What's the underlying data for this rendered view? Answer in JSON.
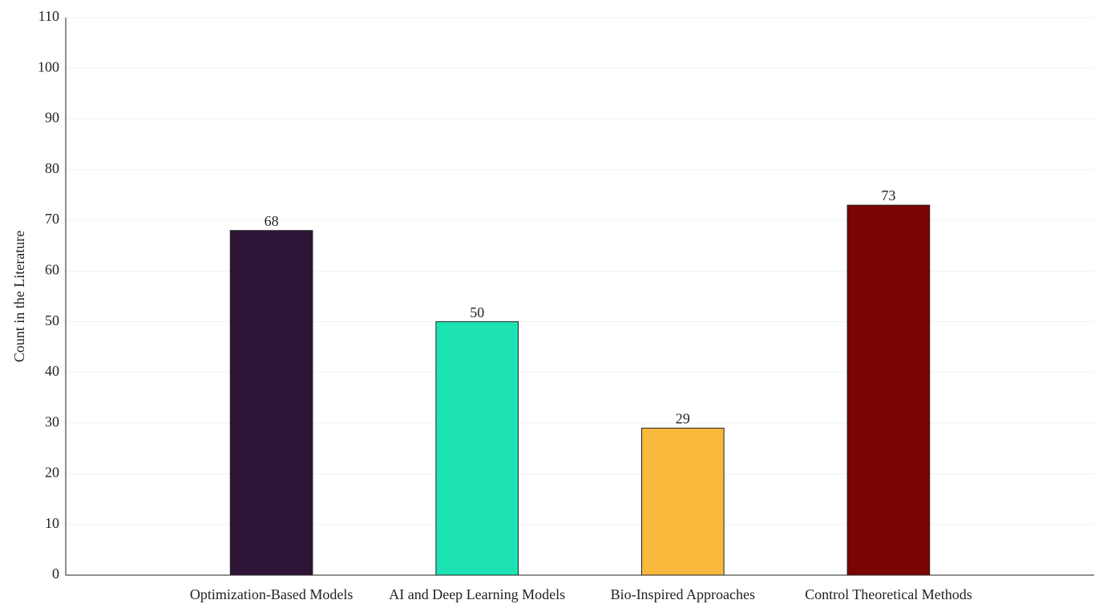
{
  "chart_data": {
    "type": "bar",
    "y_label": "Count in the Literature",
    "categories": [
      "Optimization-Based Models",
      "AI and Deep Learning Models",
      "Bio-Inspired Approaches",
      "Control Theoretical Methods"
    ],
    "values": [
      68,
      50,
      29,
      73
    ],
    "colors": [
      "#2e1437",
      "#1de3b4",
      "#f8b93c",
      "#7a0403"
    ],
    "ylim": [
      0,
      110
    ],
    "yticks": [
      0,
      10,
      20,
      30,
      40,
      50,
      60,
      70,
      80,
      90,
      100,
      110
    ],
    "grid": true
  }
}
